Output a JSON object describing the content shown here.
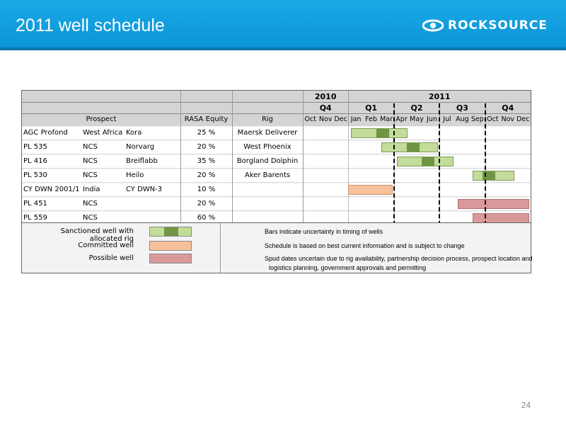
{
  "title": "2011 well schedule",
  "brand": "ROCKSOURCE",
  "page_number": "24",
  "colors": {
    "header_blue": "#0b94d8",
    "uncertainty_green": "#c3dc9a",
    "rig_green": "#6f9642",
    "committed_orange": "#f9c09c",
    "possible_red": "#d9999a"
  },
  "columns": {
    "prospect": "Prospect",
    "equity": "RASA Equity",
    "rig": "Rig"
  },
  "years": [
    "2010",
    "2011"
  ],
  "quarters": [
    "Q4",
    "Q1",
    "Q2",
    "Q3",
    "Q4"
  ],
  "months": [
    "Oct",
    "Nov",
    "Dec",
    "Jan",
    "Feb",
    "Mar",
    "Apr",
    "May",
    "Jun",
    "Jul",
    "Aug",
    "Sep",
    "Oct",
    "Nov",
    "Dec"
  ],
  "rows": [
    {
      "prospect": "AGC Profond",
      "area": "West Africa",
      "name": "Kora",
      "equity": "25 %",
      "rig": "Maersk Deliverer"
    },
    {
      "prospect": "PL 535",
      "area": "NCS",
      "name": "Norvarg",
      "equity": "20 %",
      "rig": "West Phoenix"
    },
    {
      "prospect": "PL 416",
      "area": "NCS",
      "name": "Breiflabb",
      "equity": "35 %",
      "rig": "Borgland Dolphin"
    },
    {
      "prospect": "PL 530",
      "area": "NCS",
      "name": "Heilo",
      "equity": "20 %",
      "rig": "Aker Barents"
    },
    {
      "prospect": "CY DWN 2001/1",
      "area": "India",
      "name": "CY DWN-3",
      "equity": "10 %",
      "rig": ""
    },
    {
      "prospect": "PL 451",
      "area": "NCS",
      "name": "",
      "equity": "20 %",
      "rig": ""
    },
    {
      "prospect": "PL 559",
      "area": "NCS",
      "name": "",
      "equity": "60 %",
      "rig": ""
    }
  ],
  "chart_data": {
    "type": "table",
    "timeline_months": [
      "Oct 2010",
      "Nov 2010",
      "Dec 2010",
      "Jan 2011",
      "Feb 2011",
      "Mar 2011",
      "Apr 2011",
      "May 2011",
      "Jun 2011",
      "Jul 2011",
      "Aug 2011",
      "Sep 2011",
      "Oct 2011",
      "Nov 2011",
      "Dec 2011"
    ],
    "bars": [
      {
        "row": 0,
        "kind": "sanctioned",
        "start_month": "Jan 2011",
        "rig_window": [
          "Feb 2011",
          "Mar 2011"
        ],
        "end_month": "Apr 2011"
      },
      {
        "row": 1,
        "kind": "sanctioned",
        "start_month": "Mar 2011",
        "rig_window": [
          "Apr 2011",
          "May 2011"
        ],
        "end_month": "Jun 2011"
      },
      {
        "row": 2,
        "kind": "sanctioned",
        "start_month": "Apr 2011",
        "rig_window": [
          "May 2011",
          "Jun 2011"
        ],
        "end_month": "Jul 2011"
      },
      {
        "row": 3,
        "kind": "sanctioned",
        "start_month": "Sep 2011",
        "rig_window": [
          "Sep 2011",
          "Oct 2011"
        ],
        "end_month": "Nov 2011"
      },
      {
        "row": 4,
        "kind": "committed",
        "start_month": "Jan 2011",
        "end_month": "Mar 2011"
      },
      {
        "row": 5,
        "kind": "possible",
        "start_month": "Aug 2011",
        "end_month": "Dec 2011"
      },
      {
        "row": 6,
        "kind": "possible",
        "start_month": "Sep 2011",
        "end_month": "Dec 2011"
      }
    ]
  },
  "legend": {
    "sanctioned": "Sanctioned well with allocated rig",
    "committed": "Committed well",
    "possible": "Possible well",
    "notes": [
      "Bars indicate uncertainty in timing of wells",
      "Schedule is based on best current information and is subject to change",
      "Spud dates uncertain due to rig availability, partnership decision process, prospect location and",
      "logistics planning, government approvals and permitting"
    ]
  }
}
